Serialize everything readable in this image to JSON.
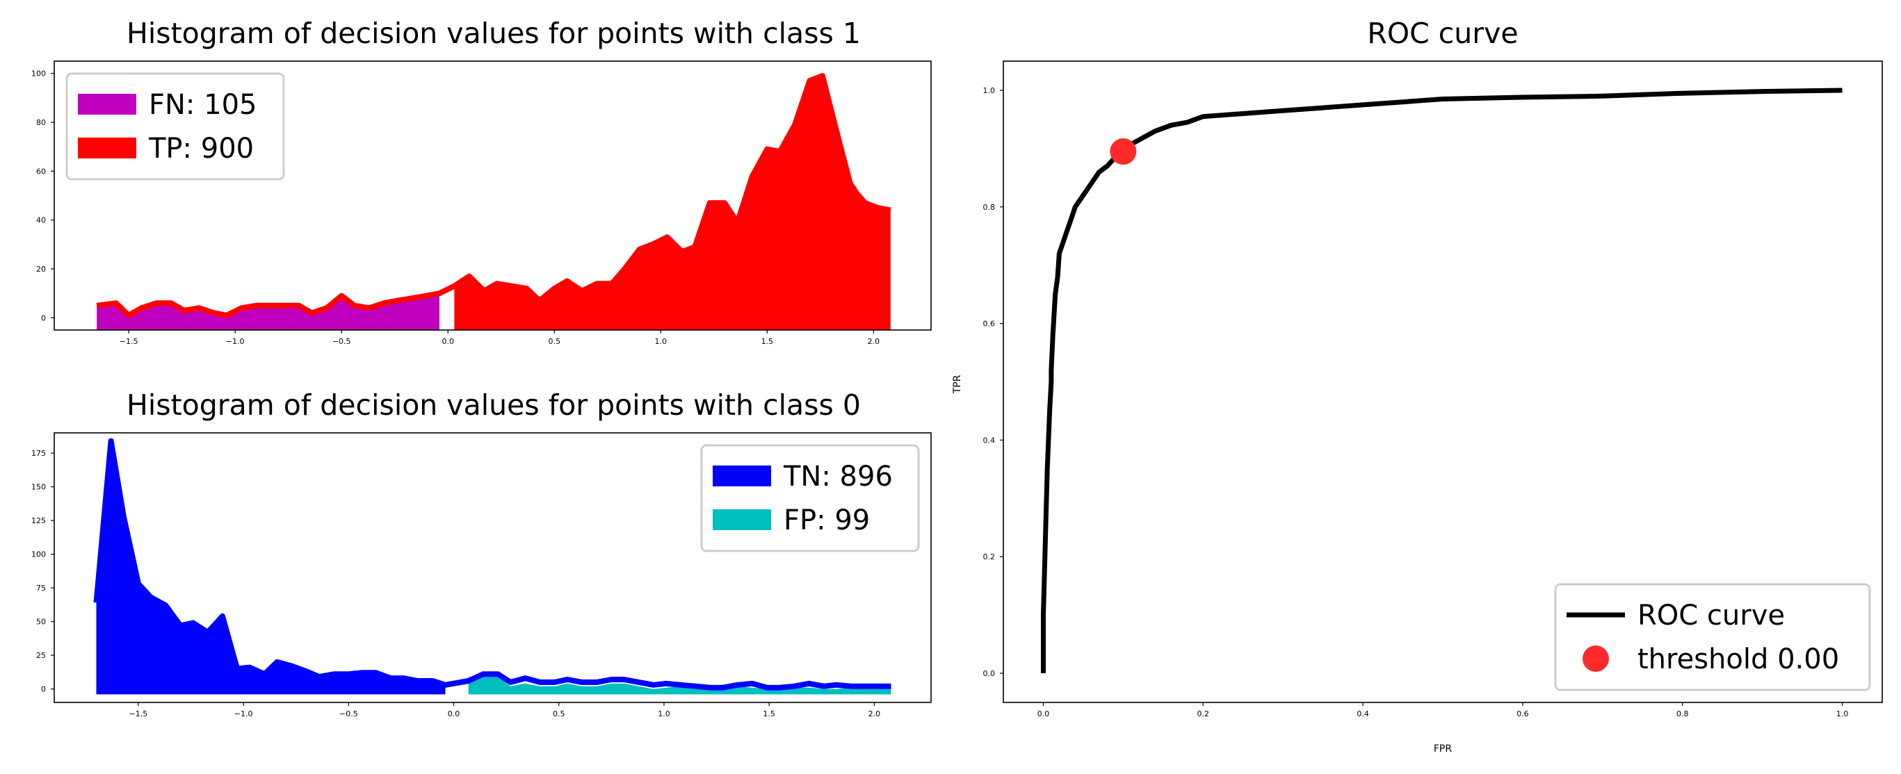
{
  "chart_data": [
    {
      "id": "class1",
      "type": "area",
      "title": "Histogram of decision values for points with class 1",
      "xlabel": "",
      "ylabel": "",
      "xlim": [
        -1.85,
        2.27
      ],
      "ylim": [
        -5,
        105
      ],
      "xticks": [
        -1.5,
        -1.0,
        -0.5,
        0.0,
        0.5,
        1.0,
        1.5,
        2.0
      ],
      "xtick_labels": [
        "−1.5",
        "−1.0",
        "−0.5",
        "0.0",
        "0.5",
        "1.0",
        "1.5",
        "2.0"
      ],
      "yticks": [
        0,
        20,
        40,
        60,
        80,
        100
      ],
      "ytick_labels": [
        "0",
        "20",
        "40",
        "60",
        "80",
        "100"
      ],
      "baseline": -5,
      "legend_position": "upper-left",
      "series": [
        {
          "name": "FN: 105",
          "color": "#bf00bf",
          "x": [
            -1.65,
            -1.56,
            -1.5,
            -1.44,
            -1.37,
            -1.3,
            -1.24,
            -1.17,
            -1.1,
            -1.04,
            -0.97,
            -0.9,
            -0.84,
            -0.77,
            -0.7,
            -0.64,
            -0.57,
            -0.5,
            -0.44,
            -0.37,
            -0.3,
            -0.24,
            -0.17,
            -0.1,
            -0.04
          ],
          "y": [
            5,
            6,
            1,
            4,
            6,
            6,
            3,
            4,
            2,
            1,
            4,
            5,
            5,
            5,
            5,
            2,
            4,
            9,
            5,
            4,
            6,
            7,
            8,
            9,
            10
          ]
        },
        {
          "name": "TP: 900",
          "color": "#ff0000",
          "x": [
            0.03,
            0.1,
            0.17,
            0.23,
            0.3,
            0.37,
            0.43,
            0.5,
            0.56,
            0.63,
            0.7,
            0.77,
            0.83,
            0.9,
            0.96,
            1.03,
            1.1,
            1.16,
            1.23,
            1.3,
            1.36,
            1.43,
            1.5,
            1.56,
            1.63,
            1.7,
            1.76,
            1.83,
            1.89,
            1.92,
            1.96,
            2.02,
            2.08
          ],
          "y": [
            13,
            17,
            11,
            14,
            13,
            12,
            7,
            12,
            15,
            11,
            14,
            14,
            20,
            28,
            30,
            33,
            27,
            29,
            47,
            47,
            39,
            58,
            69,
            68,
            79,
            97,
            99,
            75,
            55,
            51,
            47,
            45,
            44
          ]
        }
      ],
      "edge_line": {
        "color": "#ff0000",
        "x": [
          -1.65,
          -1.56,
          -1.5,
          -1.44,
          -1.37,
          -1.3,
          -1.24,
          -1.17,
          -1.1,
          -1.04,
          -0.97,
          -0.9,
          -0.84,
          -0.77,
          -0.7,
          -0.64,
          -0.57,
          -0.5,
          -0.44,
          -0.37,
          -0.3,
          -0.24,
          -0.17,
          -0.1,
          -0.04,
          0.03,
          0.1,
          0.17,
          0.23,
          0.3,
          0.37,
          0.43,
          0.5,
          0.56,
          0.63,
          0.7,
          0.77,
          0.83,
          0.9,
          0.96,
          1.03,
          1.1,
          1.16,
          1.23,
          1.3,
          1.36,
          1.43,
          1.5,
          1.56,
          1.63,
          1.7,
          1.76,
          1.83,
          1.89,
          1.92,
          1.96,
          2.02,
          2.08
        ],
        "y": [
          5,
          6,
          1,
          4,
          6,
          6,
          3,
          4,
          2,
          1,
          4,
          5,
          5,
          5,
          5,
          2,
          4,
          9,
          5,
          4,
          6,
          7,
          8,
          9,
          10,
          13,
          17,
          11,
          14,
          13,
          12,
          7,
          12,
          15,
          11,
          14,
          14,
          20,
          28,
          30,
          33,
          27,
          29,
          47,
          47,
          39,
          58,
          69,
          68,
          79,
          97,
          99,
          75,
          55,
          51,
          47,
          45,
          44
        ]
      }
    },
    {
      "id": "class0",
      "type": "area",
      "title": "Histogram of decision values for points with class 0",
      "xlabel": "",
      "ylabel": "",
      "xlim": [
        -1.9,
        2.27
      ],
      "ylim": [
        -10,
        190
      ],
      "xticks": [
        -1.5,
        -1.0,
        -0.5,
        0.0,
        0.5,
        1.0,
        1.5,
        2.0
      ],
      "xtick_labels": [
        "−1.5",
        "−1.0",
        "−0.5",
        "0.0",
        "0.5",
        "1.0",
        "1.5",
        "2.0"
      ],
      "yticks": [
        0,
        25,
        50,
        75,
        100,
        125,
        150,
        175
      ],
      "ytick_labels": [
        "0",
        "25",
        "50",
        "75",
        "100",
        "125",
        "150",
        "175"
      ],
      "baseline": -4,
      "legend_position": "upper-right",
      "series": [
        {
          "name": "TN: 896",
          "color": "#0000ff",
          "x": [
            -1.7,
            -1.63,
            -1.57,
            -1.5,
            -1.44,
            -1.37,
            -1.3,
            -1.24,
            -1.17,
            -1.1,
            -1.03,
            -0.97,
            -0.9,
            -0.84,
            -0.77,
            -0.7,
            -0.64,
            -0.57,
            -0.5,
            -0.44,
            -0.37,
            -0.3,
            -0.24,
            -0.17,
            -0.1,
            -0.04
          ],
          "y": [
            64,
            184,
            128,
            78,
            68,
            62,
            47,
            49,
            42,
            54,
            15,
            16,
            11,
            20,
            17,
            13,
            9,
            11,
            11,
            12,
            12,
            8,
            8,
            6,
            6,
            3
          ]
        },
        {
          "name": "FP: 99",
          "color": "#00bfbf",
          "x": [
            0.07,
            0.14,
            0.21,
            0.27,
            0.34,
            0.41,
            0.48,
            0.54,
            0.61,
            0.68,
            0.75,
            0.81,
            0.88,
            0.95,
            1.01,
            1.08,
            1.15,
            1.22,
            1.28,
            1.35,
            1.42,
            1.49,
            1.55,
            1.62,
            1.69,
            1.76,
            1.82,
            1.89,
            1.96,
            2.02,
            2.08
          ],
          "y": [
            9,
            9,
            9,
            2,
            4,
            2,
            2,
            4,
            2,
            2,
            4,
            4,
            2,
            0,
            1,
            2,
            1,
            0,
            0,
            2,
            1,
            0,
            0,
            1,
            1,
            0,
            0,
            1,
            0,
            0,
            0
          ]
        }
      ],
      "edge_line": {
        "color": "#0000ff",
        "x": [
          -1.7,
          -1.63,
          -1.57,
          -1.5,
          -1.44,
          -1.37,
          -1.3,
          -1.24,
          -1.17,
          -1.1,
          -1.03,
          -0.97,
          -0.9,
          -0.84,
          -0.77,
          -0.7,
          -0.64,
          -0.57,
          -0.5,
          -0.44,
          -0.37,
          -0.3,
          -0.24,
          -0.17,
          -0.1,
          -0.04,
          0.07,
          0.14,
          0.21,
          0.27,
          0.34,
          0.41,
          0.48,
          0.54,
          0.61,
          0.68,
          0.75,
          0.81,
          0.88,
          0.95,
          1.01,
          1.08,
          1.15,
          1.22,
          1.28,
          1.35,
          1.42,
          1.49,
          1.55,
          1.62,
          1.69,
          1.76,
          1.82,
          1.89,
          1.96,
          2.02,
          2.08
        ],
        "y": [
          64,
          184,
          128,
          78,
          68,
          62,
          47,
          49,
          42,
          54,
          15,
          16,
          11,
          20,
          17,
          13,
          9,
          11,
          11,
          12,
          12,
          8,
          8,
          6,
          6,
          3,
          6,
          11,
          11,
          5,
          8,
          5,
          5,
          7,
          5,
          5,
          7,
          7,
          5,
          3,
          4,
          3,
          2,
          1,
          1,
          3,
          4,
          1,
          1,
          2,
          4,
          2,
          3,
          2,
          2,
          2,
          2
        ]
      }
    },
    {
      "id": "roc",
      "type": "line",
      "title": "ROC curve",
      "xlabel": "FPR",
      "ylabel": "TPR",
      "xlim": [
        -0.05,
        1.05
      ],
      "ylim": [
        -0.05,
        1.05
      ],
      "xticks": [
        0.0,
        0.2,
        0.4,
        0.6,
        0.8,
        1.0
      ],
      "xtick_labels": [
        "0.0",
        "0.2",
        "0.4",
        "0.6",
        "0.8",
        "1.0"
      ],
      "yticks": [
        0.0,
        0.2,
        0.4,
        0.6,
        0.8,
        1.0
      ],
      "ytick_labels": [
        "0.0",
        "0.2",
        "0.4",
        "0.6",
        "0.8",
        "1.0"
      ],
      "legend_position": "lower-right",
      "series": [
        {
          "name": "ROC curve",
          "color": "#000000",
          "x": [
            0.0,
            0.0,
            0.002,
            0.003,
            0.005,
            0.005,
            0.008,
            0.01,
            0.01,
            0.012,
            0.015,
            0.018,
            0.02,
            0.025,
            0.03,
            0.035,
            0.04,
            0.05,
            0.06,
            0.07,
            0.08,
            0.09,
            0.1,
            0.12,
            0.14,
            0.16,
            0.18,
            0.2,
            0.25,
            0.3,
            0.35,
            0.4,
            0.45,
            0.5,
            0.6,
            0.7,
            0.8,
            0.9,
            1.0
          ],
          "y": [
            0.0,
            0.1,
            0.2,
            0.25,
            0.35,
            0.35,
            0.45,
            0.5,
            0.52,
            0.58,
            0.65,
            0.68,
            0.72,
            0.74,
            0.76,
            0.78,
            0.8,
            0.82,
            0.84,
            0.86,
            0.87,
            0.885,
            0.9,
            0.915,
            0.93,
            0.94,
            0.945,
            0.955,
            0.96,
            0.965,
            0.97,
            0.975,
            0.98,
            0.985,
            0.988,
            0.99,
            0.995,
            0.998,
            1.0
          ]
        },
        {
          "name": "threshold 0.00",
          "color": "#ff2a2a",
          "type": "scatter",
          "x": [
            0.1
          ],
          "y": [
            0.895
          ]
        }
      ]
    }
  ]
}
